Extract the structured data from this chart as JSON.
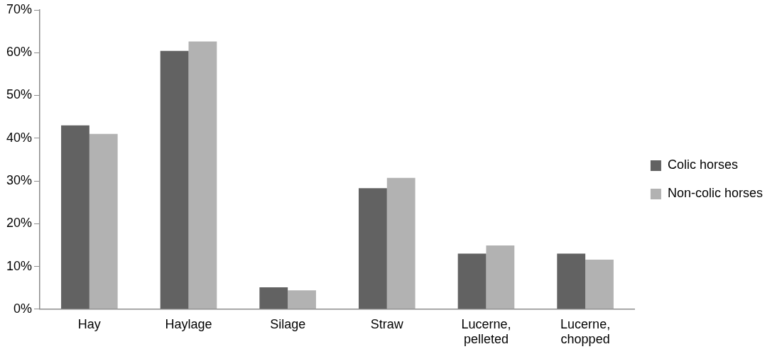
{
  "chart_data": {
    "type": "bar",
    "categories": [
      "Hay",
      "Haylage",
      "Silage",
      "Straw",
      "Lucerne, pelleted",
      "Lucerne, chopped"
    ],
    "series": [
      {
        "name": "Colic horses",
        "color": "#626262",
        "values": [
          43,
          60.4,
          5.1,
          28.3,
          13,
          13
        ]
      },
      {
        "name": "Non-colic horses",
        "color": "#b2b2b2",
        "values": [
          41,
          62.6,
          4.4,
          30.7,
          14.9,
          11.6
        ]
      }
    ],
    "ylim": [
      0,
      70
    ],
    "yticks": [
      {
        "value": 0,
        "label": "0%"
      },
      {
        "value": 10,
        "label": "10%"
      },
      {
        "value": 20,
        "label": "20%"
      },
      {
        "value": 30,
        "label": "30%"
      },
      {
        "value": 40,
        "label": "40%"
      },
      {
        "value": 50,
        "label": "50%"
      },
      {
        "value": 60,
        "label": "60%"
      },
      {
        "value": 70,
        "label": "70%"
      }
    ],
    "grid": false,
    "legend": "right"
  }
}
